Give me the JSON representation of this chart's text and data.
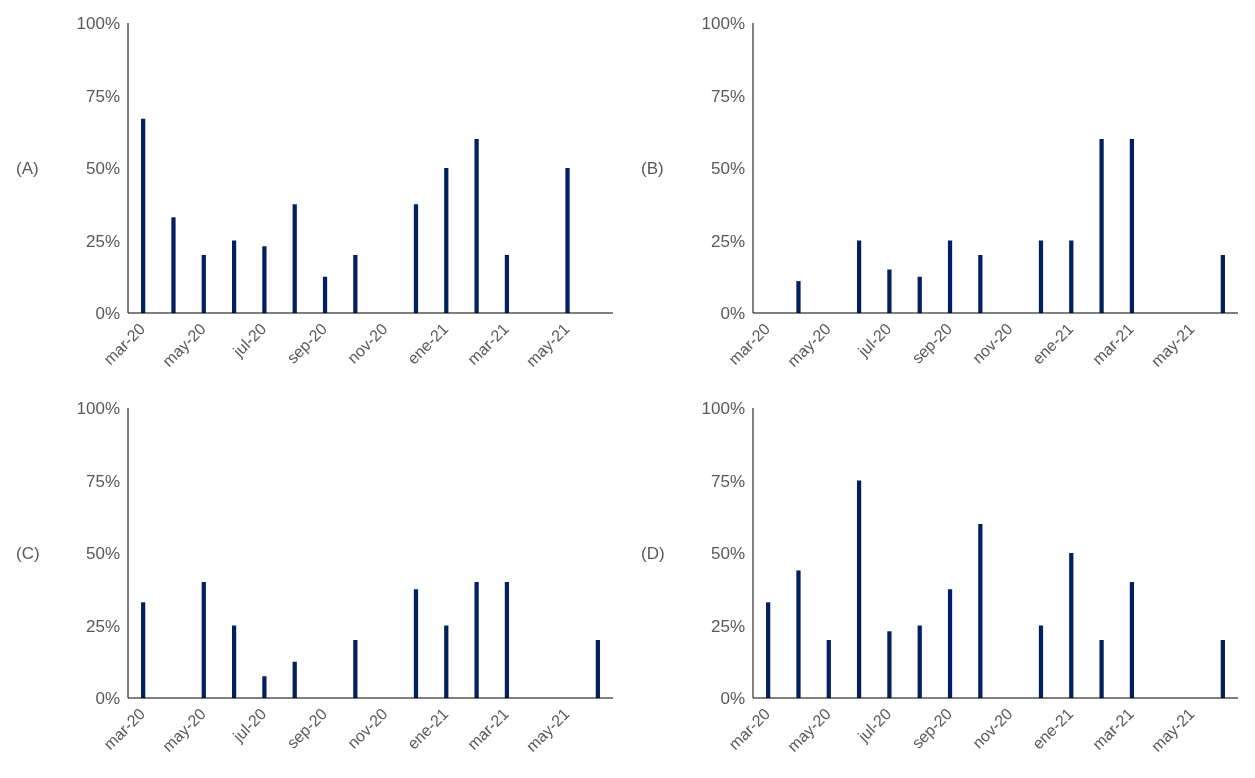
{
  "chart_data": [
    {
      "type": "bar",
      "ylabel": "(A)",
      "categories": [
        "mar-20",
        null,
        "may-20",
        null,
        "jul-20",
        null,
        "sep-20",
        null,
        "nov-20",
        null,
        "ene-21",
        null,
        "mar-21",
        null,
        "may-21",
        null
      ],
      "values": [
        67,
        33,
        20,
        25,
        23,
        37.5,
        12.5,
        20,
        0,
        37.5,
        50,
        60,
        20,
        0,
        50,
        0
      ],
      "color": "#002060",
      "ylim": [
        0,
        100
      ],
      "yticks": [
        {
          "value": 0,
          "label": "0%"
        },
        {
          "value": 25,
          "label": "25%"
        },
        {
          "value": 50,
          "label": "50%"
        },
        {
          "value": 75,
          "label": "75%"
        },
        {
          "value": 100,
          "label": "100%"
        }
      ],
      "grid": false,
      "legend": false
    },
    {
      "type": "bar",
      "ylabel": "(B)",
      "categories": [
        "mar-20",
        null,
        "may-20",
        null,
        "jul-20",
        null,
        "sep-20",
        null,
        "nov-20",
        null,
        "ene-21",
        null,
        "mar-21",
        null,
        "may-21",
        null
      ],
      "values": [
        0,
        11,
        0,
        25,
        15,
        12.5,
        25,
        20,
        0,
        25,
        25,
        60,
        60,
        0,
        0,
        20
      ],
      "color": "#002060",
      "ylim": [
        0,
        100
      ],
      "yticks": [
        {
          "value": 0,
          "label": "0%"
        },
        {
          "value": 25,
          "label": "25%"
        },
        {
          "value": 50,
          "label": "50%"
        },
        {
          "value": 75,
          "label": "75%"
        },
        {
          "value": 100,
          "label": "100%"
        }
      ],
      "grid": false,
      "legend": false
    },
    {
      "type": "bar",
      "ylabel": "(C)",
      "categories": [
        "mar-20",
        null,
        "may-20",
        null,
        "jul-20",
        null,
        "sep-20",
        null,
        "nov-20",
        null,
        "ene-21",
        null,
        "mar-21",
        null,
        "may-21",
        null
      ],
      "values": [
        33,
        0,
        40,
        25,
        7.5,
        12.5,
        0,
        20,
        0,
        37.5,
        25,
        40,
        40,
        0,
        0,
        20
      ],
      "color": "#002060",
      "ylim": [
        0,
        100
      ],
      "yticks": [
        {
          "value": 0,
          "label": "0%"
        },
        {
          "value": 25,
          "label": "25%"
        },
        {
          "value": 50,
          "label": "50%"
        },
        {
          "value": 75,
          "label": "75%"
        },
        {
          "value": 100,
          "label": "100%"
        }
      ],
      "grid": false,
      "legend": false
    },
    {
      "type": "bar",
      "ylabel": "(D)",
      "categories": [
        "mar-20",
        null,
        "may-20",
        null,
        "jul-20",
        null,
        "sep-20",
        null,
        "nov-20",
        null,
        "ene-21",
        null,
        "mar-21",
        null,
        "may-21",
        null
      ],
      "values": [
        33,
        44,
        20,
        75,
        23,
        25,
        37.5,
        60,
        0,
        25,
        50,
        20,
        40,
        0,
        0,
        20
      ],
      "color": "#002060",
      "ylim": [
        0,
        100
      ],
      "yticks": [
        {
          "value": 0,
          "label": "0%"
        },
        {
          "value": 25,
          "label": "25%"
        },
        {
          "value": 50,
          "label": "50%"
        },
        {
          "value": 75,
          "label": "75%"
        },
        {
          "value": 100,
          "label": "100%"
        }
      ],
      "grid": false,
      "legend": false
    }
  ]
}
